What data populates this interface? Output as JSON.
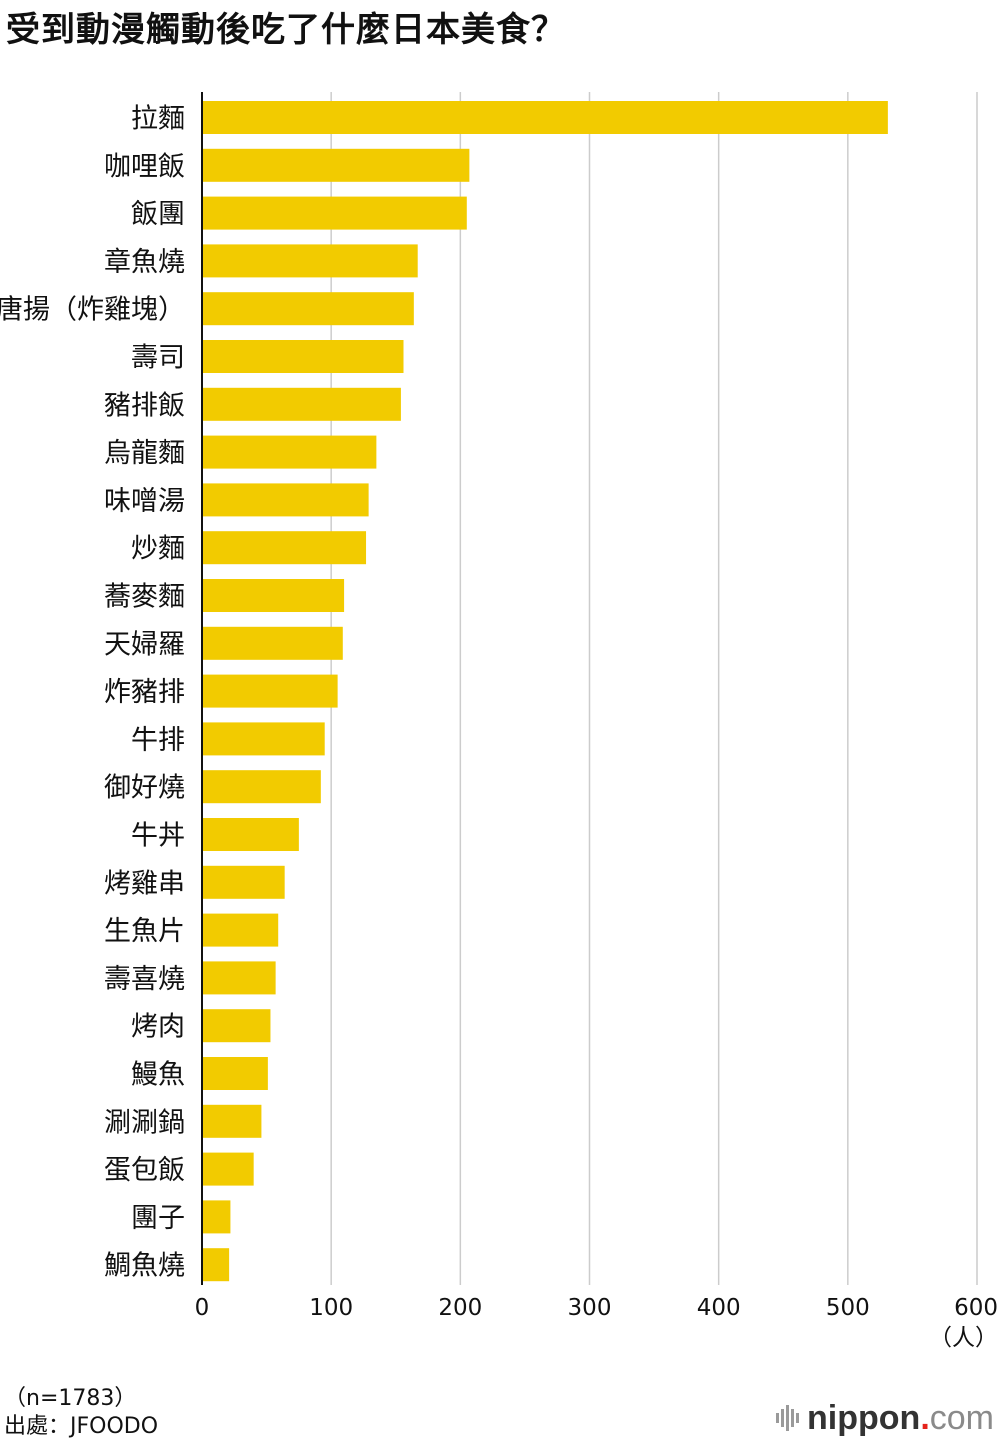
{
  "chart_data": {
    "type": "bar",
    "orientation": "horizontal",
    "title": "受到動漫觸動後吃了什麼日本美食？",
    "categories": [
      "拉麵",
      "咖哩飯",
      "飯團",
      "章魚燒",
      "唐揚（炸雞塊）",
      "壽司",
      "豬排飯",
      "烏龍麵",
      "味噌湯",
      "炒麵",
      "蕎麥麵",
      "天婦羅",
      "炸豬排",
      "牛排",
      "御好燒",
      "牛丼",
      "烤雞串",
      "生魚片",
      "壽喜燒",
      "烤肉",
      "鰻魚",
      "涮涮鍋",
      "蛋包飯",
      "團子",
      "鯛魚燒"
    ],
    "values": [
      531,
      207,
      205,
      167,
      164,
      156,
      154,
      135,
      129,
      127,
      110,
      109,
      105,
      95,
      92,
      75,
      64,
      59,
      57,
      53,
      51,
      46,
      40,
      22,
      21
    ],
    "xlim": [
      0,
      600
    ],
    "x_ticks": [
      "0",
      "100",
      "200",
      "300",
      "400",
      "500",
      "600"
    ],
    "x_unit": "（人）",
    "grid": true,
    "bar_color": "#f2cb00",
    "grid_color": "#cccccc"
  },
  "footer": {
    "sample": "（n=1783）",
    "source": "出處：JFOODO",
    "brand_name": "nippon",
    "brand_dot": ".",
    "brand_tld": "com"
  }
}
